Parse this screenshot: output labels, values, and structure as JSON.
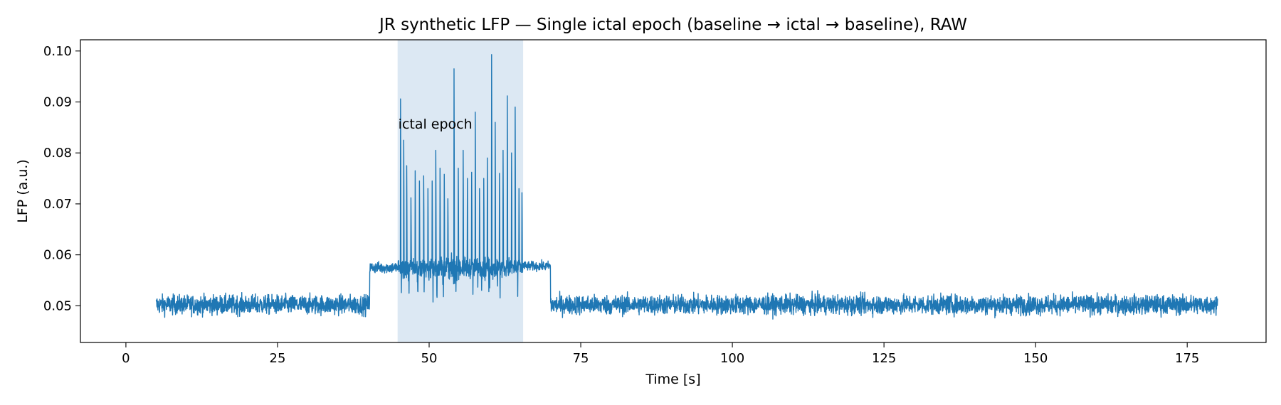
{
  "chart_data": {
    "type": "line",
    "title": "JR synthetic LFP — Single ictal epoch (baseline → ictal → baseline), RAW",
    "xlabel": "Time [s]",
    "ylabel": "LFP (a.u.)",
    "xlim": [
      -7.5,
      188
    ],
    "ylim": [
      0.0428,
      0.1022
    ],
    "xticks": [
      0,
      25,
      50,
      75,
      100,
      125,
      150,
      175
    ],
    "xtick_labels": [
      "0",
      "25",
      "50",
      "75",
      "100",
      "125",
      "150",
      "175"
    ],
    "yticks": [
      0.05,
      0.06,
      0.07,
      0.08,
      0.09,
      0.1
    ],
    "ytick_labels": [
      "0.05",
      "0.06",
      "0.07",
      "0.08",
      "0.09",
      "0.10"
    ],
    "grid": false,
    "line_color": "#1f77b4",
    "shade_color": "#dce8f3",
    "shaded_region": {
      "x0": 44.8,
      "x1": 65.5,
      "label": "ictal epoch"
    },
    "series": [
      {
        "segments": [
          {
            "x0": 5,
            "x1": 40.2,
            "mean": 0.0502,
            "spread": 0.0019
          },
          {
            "x0": 40.2,
            "x1": 44.8,
            "mean": 0.0575,
            "spread": 0.0011
          },
          {
            "x0": 44.8,
            "x1": 65.5,
            "mean": 0.0575,
            "spread": 0.002
          },
          {
            "x0": 65.5,
            "x1": 70.0,
            "mean": 0.0578,
            "spread": 0.0009
          },
          {
            "x0": 70.0,
            "x1": 180,
            "mean": 0.0502,
            "spread": 0.0019
          }
        ],
        "peaks": [
          {
            "x": 45.3,
            "y": 0.0906
          },
          {
            "x": 45.8,
            "y": 0.0825
          },
          {
            "x": 46.3,
            "y": 0.0775
          },
          {
            "x": 47.0,
            "y": 0.0712
          },
          {
            "x": 47.7,
            "y": 0.0765
          },
          {
            "x": 48.4,
            "y": 0.0745
          },
          {
            "x": 49.1,
            "y": 0.0755
          },
          {
            "x": 49.8,
            "y": 0.073
          },
          {
            "x": 50.5,
            "y": 0.0745
          },
          {
            "x": 51.1,
            "y": 0.0805
          },
          {
            "x": 51.8,
            "y": 0.077
          },
          {
            "x": 52.5,
            "y": 0.0758
          },
          {
            "x": 53.1,
            "y": 0.071
          },
          {
            "x": 54.1,
            "y": 0.0965
          },
          {
            "x": 54.8,
            "y": 0.077
          },
          {
            "x": 55.6,
            "y": 0.0805
          },
          {
            "x": 56.3,
            "y": 0.075
          },
          {
            "x": 57.0,
            "y": 0.0762
          },
          {
            "x": 57.6,
            "y": 0.088
          },
          {
            "x": 58.3,
            "y": 0.073
          },
          {
            "x": 59.0,
            "y": 0.075
          },
          {
            "x": 59.6,
            "y": 0.079
          },
          {
            "x": 60.3,
            "y": 0.0993
          },
          {
            "x": 60.9,
            "y": 0.086
          },
          {
            "x": 61.6,
            "y": 0.076
          },
          {
            "x": 62.2,
            "y": 0.0805
          },
          {
            "x": 62.9,
            "y": 0.0912
          },
          {
            "x": 63.6,
            "y": 0.08
          },
          {
            "x": 64.2,
            "y": 0.089
          },
          {
            "x": 64.8,
            "y": 0.073
          },
          {
            "x": 65.3,
            "y": 0.0722
          }
        ]
      }
    ]
  }
}
